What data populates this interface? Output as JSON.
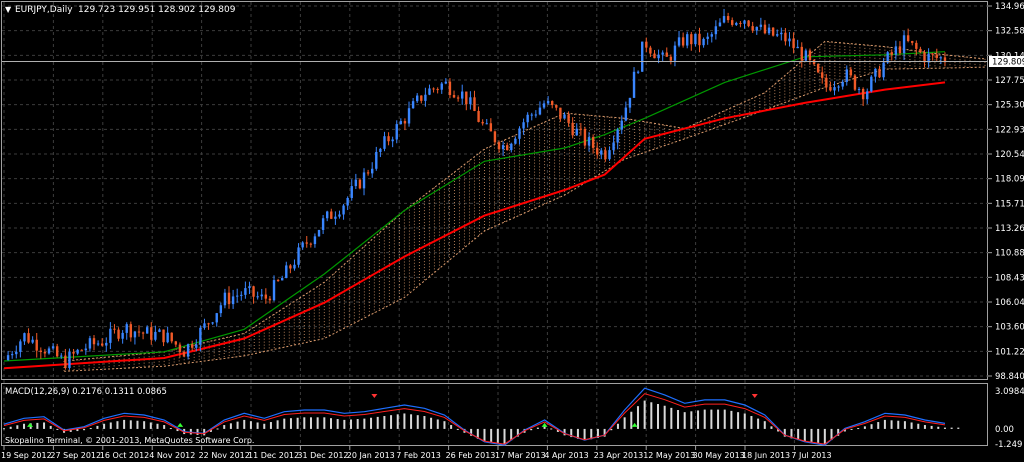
{
  "header": {
    "symbol_label": "EURJPY,Daily",
    "ohlc": "129.723 129.951 128.902 129.809",
    "menu_glyph": "▼"
  },
  "price_axis": {
    "ticks": [
      "134.960",
      "132.580",
      "130.140",
      "127.750",
      "125.300",
      "122.930",
      "120.540",
      "118.090",
      "115.710",
      "113.260",
      "110.880",
      "108.430",
      "106.040",
      "103.600",
      "101.220",
      "98.840"
    ],
    "current_price": "129.809"
  },
  "macd": {
    "label": "MACD(12,26,9) 0.2176 0.1311 0.0865",
    "axis_ticks": [
      "3.0984",
      "0.00",
      "-1.249"
    ]
  },
  "copyright": "Skopalino Terminal, © 2001-2013, MetaQuotes Software Corp.",
  "time_axis": {
    "labels": [
      "19 Sep 2012",
      "27 Sep 2012",
      "16 Oct 2012",
      "4 Nov 2012",
      "22 Nov 2012",
      "11 Dec 2012",
      "31 Dec 2012",
      "20 Jan 2013",
      "7 Feb 2013",
      "26 Feb 2013",
      "17 Mar 2013",
      "4 Apr 2013",
      "23 Apr 2013",
      "12 May 2013",
      "30 May 2013",
      "18 Jun 2013",
      "7 Jul 2013"
    ]
  },
  "colors": {
    "background": "#000000",
    "grid": "#3c3c3c",
    "bull": "#3a86ff",
    "bear": "#f05a28",
    "ma_slow": "#ff0000",
    "ma_fast": "#009900",
    "cloud": "#d99a6c",
    "text": "#ffffff",
    "macd_hist": "#d9d9d9",
    "macd_line": "#1e6fff",
    "signal_line": "#ff2020",
    "up_arrow": "#33ff33",
    "down_arrow": "#ff3333"
  },
  "chart_data": {
    "type": "candlestick",
    "symbol": "EURJPY",
    "timeframe": "Daily",
    "last": {
      "open": 129.723,
      "high": 129.951,
      "low": 128.902,
      "close": 129.809
    },
    "ylim": [
      98.84,
      134.96
    ],
    "x": [
      "19 Sep 2012",
      "27 Sep 2012",
      "16 Oct 2012",
      "4 Nov 2012",
      "22 Nov 2012",
      "11 Dec 2012",
      "31 Dec 2012",
      "20 Jan 2013",
      "7 Feb 2013",
      "26 Feb 2013",
      "17 Mar 2013",
      "4 Apr 2013",
      "23 Apr 2013",
      "12 May 2013",
      "30 May 2013",
      "18 Jun 2013",
      "7 Jul 2013"
    ],
    "close_path": [
      [
        0,
        100.4
      ],
      [
        1,
        102.8
      ],
      [
        2,
        101.6
      ],
      [
        3,
        100.2
      ],
      [
        4,
        101.6
      ],
      [
        5,
        102.3
      ],
      [
        6,
        103.6
      ],
      [
        7,
        103.0
      ],
      [
        8,
        102.8
      ],
      [
        9,
        101.3
      ],
      [
        10,
        103.6
      ],
      [
        11,
        106.3
      ],
      [
        12,
        107.0
      ],
      [
        13,
        106.3
      ],
      [
        14,
        108.6
      ],
      [
        15,
        111.6
      ],
      [
        16,
        114.0
      ],
      [
        17,
        115.8
      ],
      [
        18,
        118.4
      ],
      [
        19,
        121.5
      ],
      [
        20,
        124.0
      ],
      [
        21,
        126.5
      ],
      [
        22,
        127.4
      ],
      [
        23,
        126.2
      ],
      [
        24,
        123.0
      ],
      [
        25,
        121.2
      ],
      [
        26,
        123.8
      ],
      [
        27,
        125.5
      ],
      [
        28,
        124.0
      ],
      [
        29,
        121.8
      ],
      [
        30,
        120.5
      ],
      [
        31,
        124.8
      ],
      [
        32,
        131.5
      ],
      [
        33,
        129.5
      ],
      [
        34,
        131.8
      ],
      [
        35,
        131.3
      ],
      [
        36,
        133.6
      ],
      [
        37,
        133.8
      ],
      [
        38,
        132.3
      ],
      [
        39,
        131.8
      ],
      [
        40,
        130.0
      ],
      [
        41,
        127.0
      ],
      [
        42,
        128.3
      ],
      [
        43,
        126.5
      ],
      [
        44,
        129.5
      ],
      [
        45,
        131.5
      ],
      [
        46,
        130.0
      ],
      [
        47,
        129.8
      ]
    ],
    "series": [
      {
        "name": "",
        "color": "#ff0000",
        "points": [
          [
            0,
            99.6
          ],
          [
            8,
            100.6
          ],
          [
            12,
            102.5
          ],
          [
            16,
            106.0
          ],
          [
            20,
            110.5
          ],
          [
            24,
            114.5
          ],
          [
            28,
            117.0
          ],
          [
            30,
            118.5
          ],
          [
            32,
            122.0
          ],
          [
            36,
            124.0
          ],
          [
            40,
            125.5
          ],
          [
            44,
            126.8
          ],
          [
            47,
            127.5
          ]
        ]
      },
      {
        "name": "",
        "color": "#009900",
        "points": [
          [
            0,
            100.3
          ],
          [
            8,
            101.2
          ],
          [
            12,
            103.4
          ],
          [
            16,
            108.8
          ],
          [
            20,
            115.0
          ],
          [
            24,
            119.8
          ],
          [
            28,
            121.1
          ],
          [
            30,
            122.4
          ],
          [
            32,
            124.0
          ],
          [
            36,
            127.5
          ],
          [
            40,
            130.0
          ],
          [
            44,
            130.2
          ],
          [
            47,
            130.5
          ]
        ]
      }
    ],
    "cloud": {
      "upper": [
        [
          3,
          100.3
        ],
        [
          8,
          101.2
        ],
        [
          12,
          103.0
        ],
        [
          16,
          108.0
        ],
        [
          20,
          115.0
        ],
        [
          24,
          121.0
        ],
        [
          28,
          124.5
        ],
        [
          31,
          124.0
        ],
        [
          34,
          123.0
        ],
        [
          38,
          126.5
        ],
        [
          41,
          131.5
        ],
        [
          44,
          131.0
        ],
        [
          47,
          130.2
        ],
        [
          49,
          129.8
        ]
      ],
      "lower": [
        [
          3,
          99.3
        ],
        [
          8,
          99.8
        ],
        [
          12,
          100.8
        ],
        [
          16,
          102.5
        ],
        [
          20,
          106.5
        ],
        [
          24,
          113.0
        ],
        [
          28,
          116.5
        ],
        [
          31,
          120.0
        ],
        [
          34,
          122.0
        ],
        [
          38,
          124.8
        ],
        [
          41,
          127.0
        ],
        [
          44,
          128.8
        ],
        [
          47,
          128.9
        ],
        [
          49,
          129.0
        ]
      ]
    },
    "macd_histogram": [
      0.05,
      0.4,
      0.5,
      -0.3,
      -0.1,
      0.4,
      0.7,
      0.6,
      0.3,
      -0.4,
      -0.5,
      0.3,
      0.7,
      0.4,
      0.8,
      0.9,
      0.9,
      0.7,
      0.8,
      1.0,
      1.2,
      1.0,
      0.6,
      -0.3,
      -1.0,
      -1.2,
      -0.3,
      0.3,
      -0.5,
      -0.9,
      -0.6,
      0.9,
      2.2,
      1.8,
      1.3,
      1.5,
      1.5,
      1.2,
      0.6,
      -0.6,
      -1.0,
      -1.2,
      -0.2,
      0.2,
      0.7,
      0.6,
      0.3,
      0.1
    ],
    "macd_ylim": [
      -1.249,
      3.0984
    ],
    "ylabel": "",
    "xlabel": "",
    "title": ""
  }
}
